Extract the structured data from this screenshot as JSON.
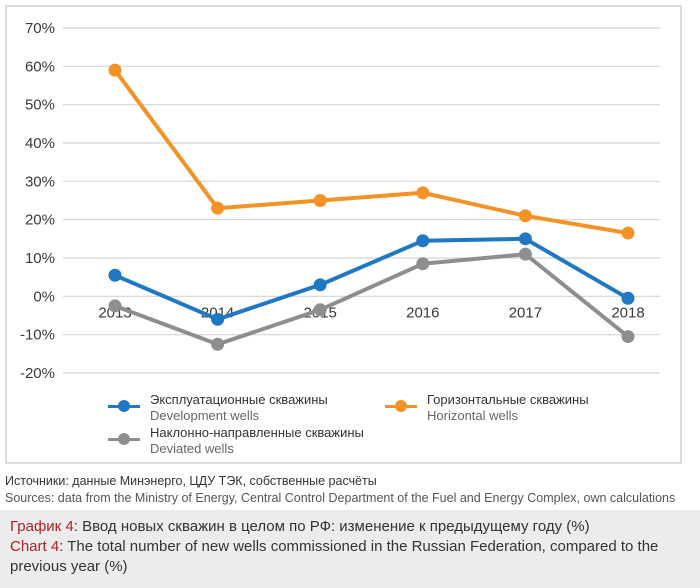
{
  "chart_data": {
    "type": "line",
    "title": "",
    "xlabel": "",
    "ylabel": "",
    "x": [
      "2013",
      "2014",
      "2015",
      "2016",
      "2017",
      "2018"
    ],
    "ylim": [
      -20,
      70
    ],
    "yticks": [
      70,
      60,
      50,
      40,
      30,
      20,
      10,
      0,
      -10,
      -20
    ],
    "ytick_labels": [
      "70%",
      "60%",
      "50%",
      "40%",
      "30%",
      "20%",
      "10%",
      "0%",
      "-10%",
      "-20%"
    ],
    "grid": true,
    "legend_position": "bottom",
    "series": [
      {
        "name": "Эксплуатационные скважины",
        "name_en": "Development wells",
        "color": "#1f78c1",
        "values": [
          5.5,
          -6,
          3,
          14.5,
          15,
          -0.5
        ]
      },
      {
        "name": "Горизонтальные скважины",
        "name_en": "Horizontal wells",
        "color": "#f39325",
        "values": [
          59,
          23,
          25,
          27,
          21,
          16.5
        ]
      },
      {
        "name": "Наклонно-направленные скважины",
        "name_en": "Deviated wells",
        "color": "#8e8e8e",
        "values": [
          -2.5,
          -12.5,
          -3.5,
          8.5,
          11,
          -10.5
        ]
      }
    ]
  },
  "sources": {
    "ru": "Источники: данные Минэнерго, ЦДУ ТЭК, собственные расчёты",
    "en": "Sources: data from the Ministry of Energy, Central Control Department of the Fuel and Energy Complex, own calculations"
  },
  "caption": {
    "ru_label": "График 4",
    "ru_text": ": Ввод новых скважин в целом по РФ: изменение к предыдущему году (%)",
    "en_label": "Chart 4",
    "en_text": ": The total number of new wells commissioned in the Russian Federation, compared to the previous year (%)"
  }
}
